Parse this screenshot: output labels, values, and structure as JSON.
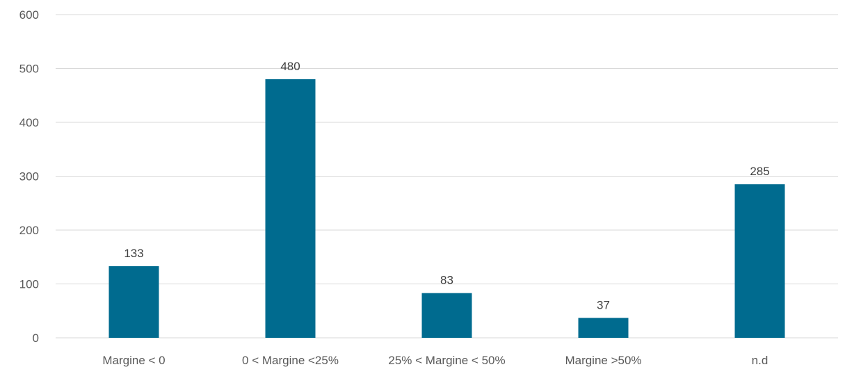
{
  "chart_data": {
    "type": "bar",
    "title": "",
    "xlabel": "",
    "ylabel": "",
    "categories": [
      "Margine < 0",
      "0 < Margine <25%",
      "25% < Margine < 50%",
      "Margine >50%",
      "n.d"
    ],
    "values": [
      133,
      480,
      83,
      37,
      285
    ],
    "ylim": [
      0,
      600
    ],
    "yticks": [
      0,
      100,
      200,
      300,
      400,
      500,
      600
    ],
    "grid": true,
    "legend": "none",
    "data_labels": true,
    "bar_color": "#006b8f",
    "grid_color": "#d9d9d9"
  }
}
